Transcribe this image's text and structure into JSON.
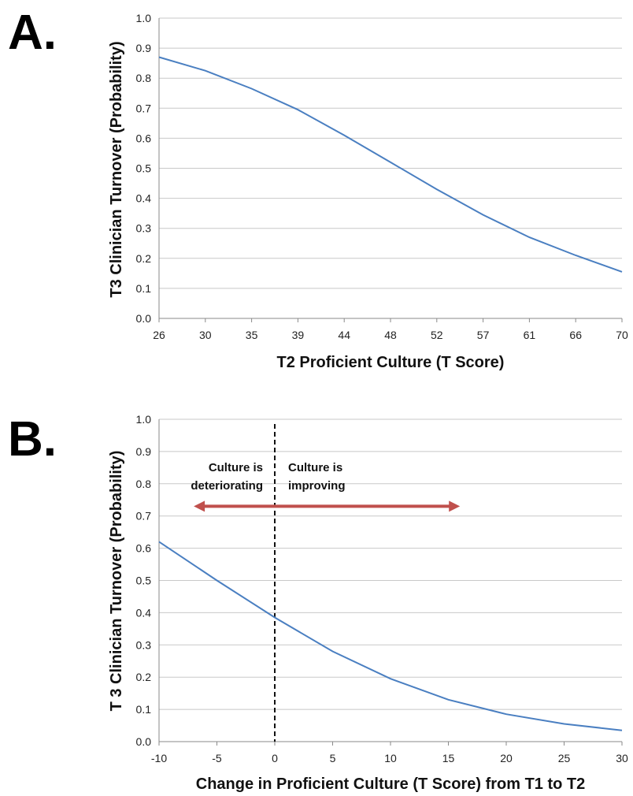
{
  "chart_data": [
    {
      "panel_label": "A.",
      "type": "line",
      "xlabel": "T2 Proficient Culture (T Score)",
      "ylabel": "T3 Clinician Turnover (Probability)",
      "x_tick_labels": [
        "26",
        "30",
        "35",
        "39",
        "44",
        "48",
        "52",
        "57",
        "61",
        "66",
        "70"
      ],
      "y_tick_labels": [
        "0.0",
        "0.1",
        "0.2",
        "0.3",
        "0.4",
        "0.5",
        "0.6",
        "0.7",
        "0.8",
        "0.9",
        "1.0"
      ],
      "ylim": [
        0,
        1
      ],
      "grid": true,
      "x": [
        26,
        30,
        35,
        39,
        44,
        48,
        52,
        57,
        61,
        66,
        70
      ],
      "y": [
        0.87,
        0.825,
        0.765,
        0.695,
        0.61,
        0.52,
        0.43,
        0.345,
        0.27,
        0.21,
        0.155
      ]
    },
    {
      "panel_label": "B.",
      "type": "line",
      "xlabel": "Change in Proficient Culture (T Score) from T1 to T2",
      "ylabel": "T 3 Clinician Turnover (Probability)",
      "xlim": [
        -10,
        30
      ],
      "x_tick_labels": [
        "-10",
        "-5",
        "0",
        "5",
        "10",
        "15",
        "20",
        "25",
        "30"
      ],
      "y_tick_labels": [
        "0.0",
        "0.1",
        "0.2",
        "0.3",
        "0.4",
        "0.5",
        "0.6",
        "0.7",
        "0.8",
        "0.9",
        "1.0"
      ],
      "ylim": [
        0,
        1
      ],
      "grid": true,
      "x": [
        -10,
        -5,
        0,
        5,
        10,
        15,
        20,
        25,
        30
      ],
      "y": [
        0.62,
        0.5,
        0.385,
        0.28,
        0.195,
        0.13,
        0.085,
        0.055,
        0.035
      ],
      "annotations": {
        "left_text": [
          "Culture is",
          "deteriorating"
        ],
        "right_text": [
          "Culture is",
          "improving"
        ],
        "divider_x": 0,
        "arrow_y": 0.73,
        "arrow_x_range": [
          -7,
          16
        ],
        "arrow_color": "#c0504d"
      }
    }
  ]
}
